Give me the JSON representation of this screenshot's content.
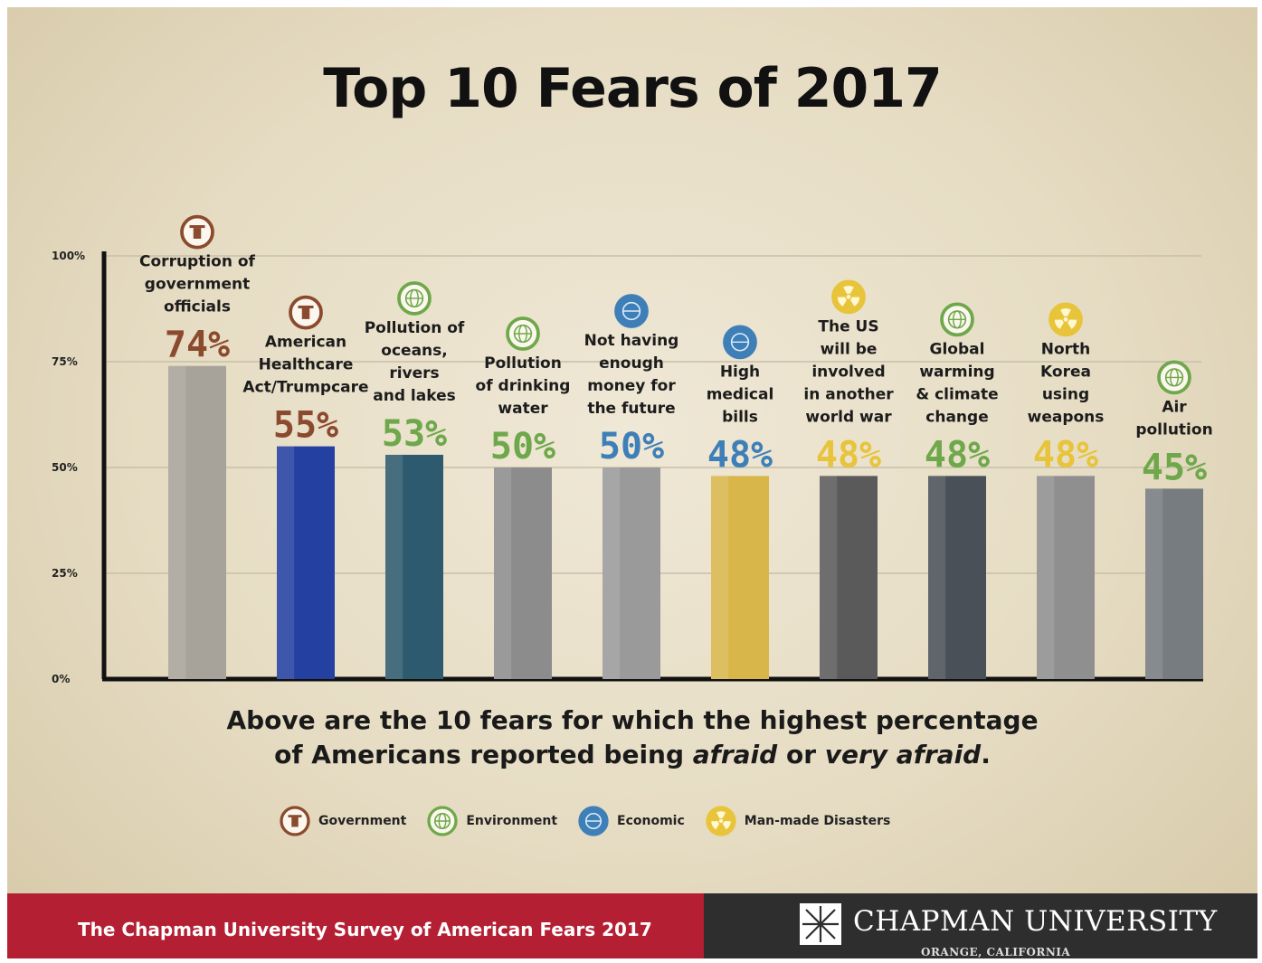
{
  "title": "Top 10 Fears of 2017",
  "caption": {
    "line1": "Above are the 10 fears for which the highest percentage",
    "line2_prefix": "of Americans reported being ",
    "afraid": "afraid",
    "or": " or ",
    "very_afraid": "very afraid",
    "line2_suffix": "."
  },
  "category_colors": {
    "Government": "#8b4a2e",
    "Environment": "#6ea84a",
    "Economic": "#3f7fb8",
    "Man-made Disasters": "#e8c43a"
  },
  "legend": [
    {
      "label": "Government",
      "category": "Government",
      "icon": "pillar-icon"
    },
    {
      "label": "Environment",
      "category": "Environment",
      "icon": "globe-icon"
    },
    {
      "label": "Economic",
      "category": "Economic",
      "icon": "dollar-globe-icon"
    },
    {
      "label": "Man-made Disasters",
      "category": "Man-made Disasters",
      "icon": "radiation-icon"
    }
  ],
  "chart_data": {
    "type": "bar",
    "title": "Top 10 Fears of 2017",
    "xlabel": "",
    "ylabel": "",
    "ylim": [
      0,
      100
    ],
    "yticks": [
      "0%",
      "25%",
      "50%",
      "75%",
      "100%"
    ],
    "grid": true,
    "categories": [
      [
        "Corruption of",
        "government",
        "officials"
      ],
      [
        "American",
        "Healthcare",
        "Act/Trumpcare"
      ],
      [
        "Pollution of",
        "oceans,",
        "rivers",
        "and lakes"
      ],
      [
        "Pollution",
        "of drinking",
        "water"
      ],
      [
        "Not having",
        "enough",
        "money for",
        "the future"
      ],
      [
        "High",
        "medical",
        "bills"
      ],
      [
        "The US",
        "will be",
        "involved",
        "in another",
        "world war"
      ],
      [
        "Global",
        "warming",
        "& climate",
        "change"
      ],
      [
        "North",
        "Korea",
        "using",
        "weapons"
      ],
      [
        "Air",
        "pollution"
      ]
    ],
    "values": [
      74,
      55,
      53,
      50,
      50,
      48,
      48,
      48,
      48,
      45
    ],
    "value_labels": [
      "74%",
      "55%",
      "53%",
      "50%",
      "50%",
      "48%",
      "48%",
      "48%",
      "48%",
      "45%"
    ],
    "fear_category": [
      "Government",
      "Government",
      "Environment",
      "Environment",
      "Economic",
      "Economic",
      "Man-made Disasters",
      "Environment",
      "Man-made Disasters",
      "Environment"
    ],
    "bar_colors": [
      "#a8a39a",
      "#2440a0",
      "#2d5a6e",
      "#8c8c8c",
      "#9a9a9a",
      "#d9b64a",
      "#5a5a5a",
      "#4a5058",
      "#8f8f8f",
      "#777c80"
    ]
  },
  "footer": {
    "survey": "The Chapman University Survey of American Fears 2017",
    "university": "CHAPMAN UNIVERSITY",
    "location": "ORANGE, CALIFORNIA"
  }
}
